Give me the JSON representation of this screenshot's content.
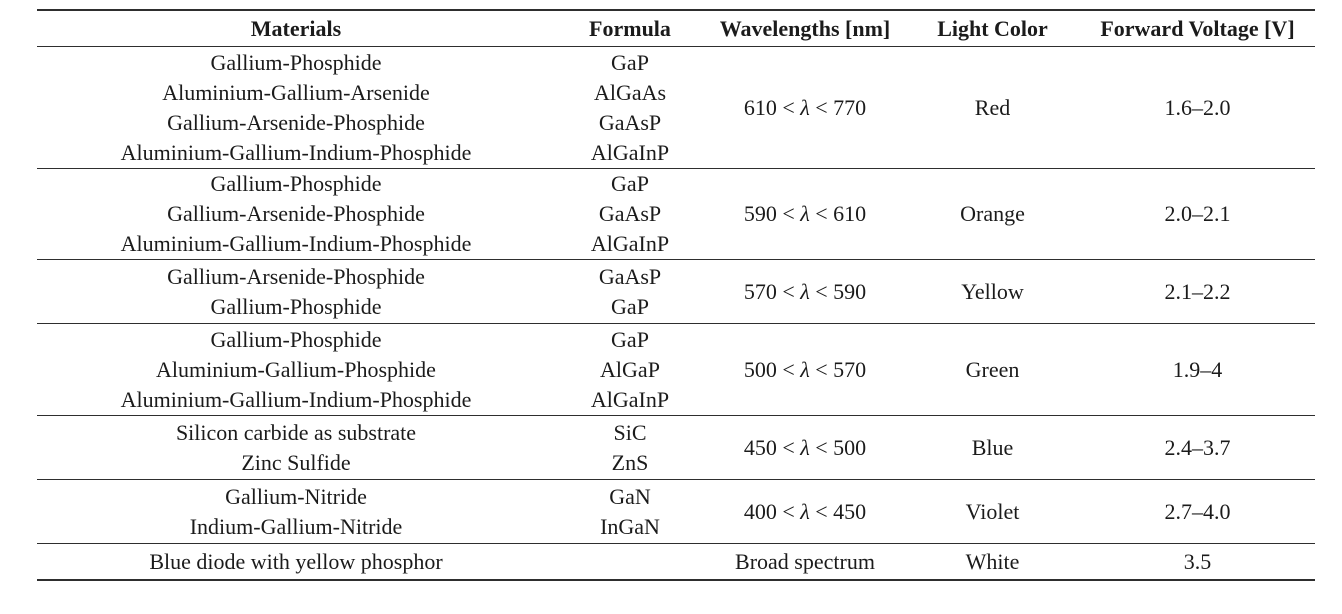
{
  "table": {
    "headers": {
      "materials": "Materials",
      "formula": "Formula",
      "wavelengths": "Wavelengths [nm]",
      "light_color": "Light Color",
      "forward_voltage": "Forward Voltage [V]"
    },
    "rows": [
      {
        "materials": [
          "Gallium-Phosphide",
          "Aluminium-Gallium-Arsenide",
          "Gallium-Arsenide-Phosphide",
          "Aluminium-Gallium-Indium-Phosphide"
        ],
        "formulas": [
          "GaP",
          "AlGaAs",
          "GaAsP",
          "AlGaInP"
        ],
        "wavelength": "610 < λ < 770",
        "light_color": "Red",
        "forward_voltage": "1.6–2.0"
      },
      {
        "materials": [
          "Gallium-Phosphide",
          "Gallium-Arsenide-Phosphide",
          "Aluminium-Gallium-Indium-Phosphide"
        ],
        "formulas": [
          "GaP",
          "GaAsP",
          "AlGaInP"
        ],
        "wavelength": "590 < λ < 610",
        "light_color": "Orange",
        "forward_voltage": "2.0–2.1"
      },
      {
        "materials": [
          "Gallium-Arsenide-Phosphide",
          "Gallium-Phosphide"
        ],
        "formulas": [
          "GaAsP",
          "GaP"
        ],
        "wavelength": "570 < λ < 590",
        "light_color": "Yellow",
        "forward_voltage": "2.1–2.2"
      },
      {
        "materials": [
          "Gallium-Phosphide",
          "Aluminium-Gallium-Phosphide",
          "Aluminium-Gallium-Indium-Phosphide"
        ],
        "formulas": [
          "GaP",
          "AlGaP",
          "AlGaInP"
        ],
        "wavelength": "500 < λ < 570",
        "light_color": "Green",
        "forward_voltage": "1.9–4"
      },
      {
        "materials": [
          "Silicon carbide as substrate",
          "Zinc Sulfide"
        ],
        "formulas": [
          "SiC",
          "ZnS"
        ],
        "wavelength": "450 < λ < 500",
        "light_color": "Blue",
        "forward_voltage": "2.4–3.7"
      },
      {
        "materials": [
          "Gallium-Nitride",
          "Indium-Gallium-Nitride"
        ],
        "formulas": [
          "GaN",
          "InGaN"
        ],
        "wavelength": "400 < λ < 450",
        "light_color": "Violet",
        "forward_voltage": "2.7–4.0"
      },
      {
        "materials": [
          "Blue diode with yellow phosphor"
        ],
        "formulas": [],
        "wavelength": "Broad spectrum",
        "light_color": "White",
        "forward_voltage": "3.5"
      }
    ]
  }
}
